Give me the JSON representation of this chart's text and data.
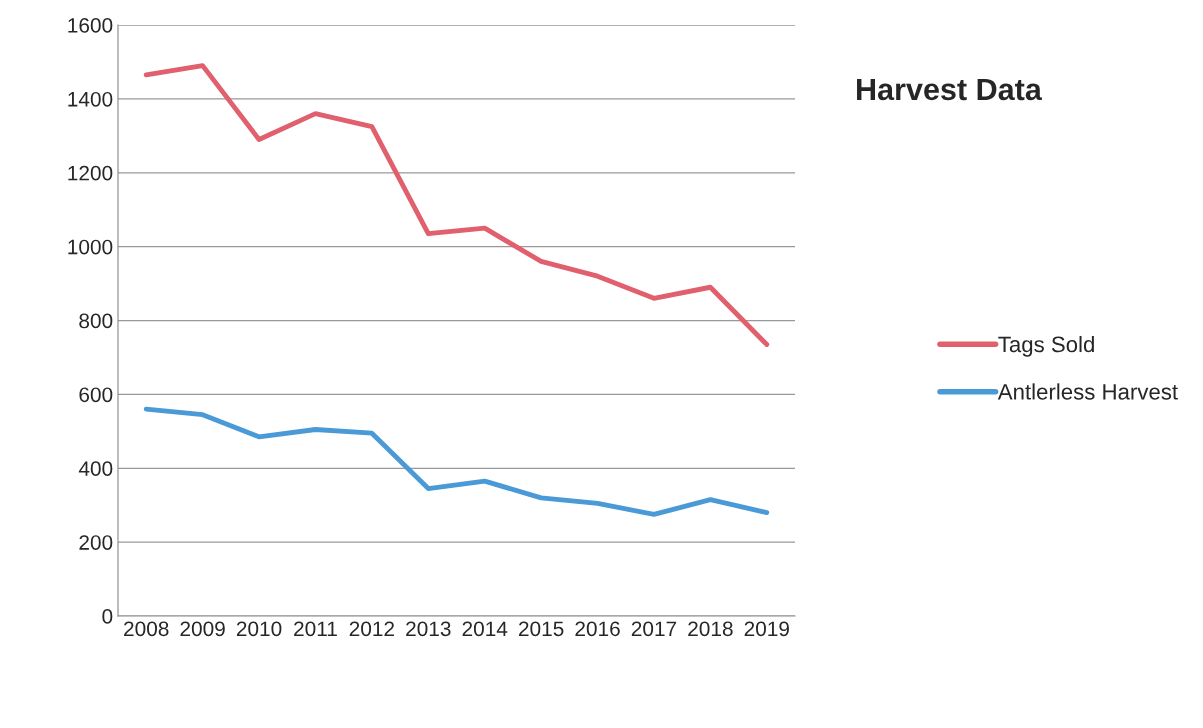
{
  "chart_data": {
    "type": "line",
    "title": "Harvest Data",
    "categories": [
      "2008",
      "2009",
      "2010",
      "2011",
      "2012",
      "2013",
      "2014",
      "2015",
      "2016",
      "2017",
      "2018",
      "2019"
    ],
    "series": [
      {
        "name": "Tags Sold",
        "color": "#e0606e",
        "values": [
          1465,
          1490,
          1290,
          1360,
          1325,
          1035,
          1050,
          960,
          920,
          860,
          890,
          735
        ]
      },
      {
        "name": "Antlerless Harvest",
        "color": "#4a9ad8",
        "values": [
          560,
          545,
          485,
          505,
          495,
          345,
          365,
          320,
          305,
          275,
          315,
          280
        ]
      }
    ],
    "ylim": [
      0,
      1600
    ],
    "yticks": [
      0,
      200,
      400,
      600,
      800,
      1000,
      1200,
      1400,
      1600
    ],
    "grid": "y",
    "legend": "right",
    "marker": "none",
    "line_style": "solid"
  }
}
